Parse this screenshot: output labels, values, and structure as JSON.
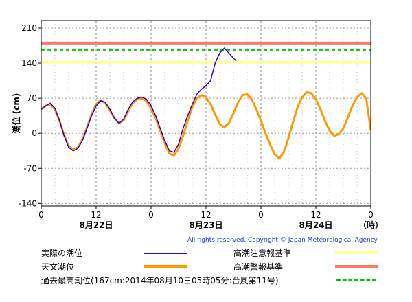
{
  "chart_data": {
    "type": "line",
    "ylabel": "潮位 (cm)",
    "ylim": [
      -145,
      225
    ],
    "yticks": [
      210,
      140,
      70,
      0,
      -70,
      -140
    ],
    "xlim": [
      0,
      72
    ],
    "xticks": [
      {
        "x": 0,
        "label": "0"
      },
      {
        "x": 12,
        "label": "12"
      },
      {
        "x": 24,
        "label": "0"
      },
      {
        "x": 36,
        "label": "12"
      },
      {
        "x": 48,
        "label": "0"
      },
      {
        "x": 60,
        "label": "12"
      },
      {
        "x": 72,
        "label": "0"
      }
    ],
    "date_labels": [
      {
        "x": 12,
        "label": "8月22日"
      },
      {
        "x": 36,
        "label": "8月23日"
      },
      {
        "x": 60,
        "label": "8月24日"
      },
      {
        "x": 72,
        "label": "（時）"
      }
    ],
    "grid": true,
    "series": [
      {
        "name": "実際の潮位",
        "color": "#3300cc",
        "x": [
          0,
          1,
          2,
          3,
          4,
          5,
          6,
          7,
          8,
          9,
          10,
          11,
          12,
          13,
          14,
          15,
          16,
          17,
          18,
          19,
          20,
          21,
          22,
          23,
          24,
          25,
          26,
          27,
          28,
          29,
          30,
          31,
          32,
          33,
          34,
          35,
          36,
          37,
          38,
          39,
          40,
          41,
          42,
          42.5
        ],
        "y": [
          48,
          55,
          60,
          50,
          25,
          -5,
          -28,
          -35,
          -30,
          -15,
          10,
          35,
          55,
          65,
          62,
          48,
          30,
          20,
          28,
          48,
          63,
          70,
          72,
          68,
          55,
          35,
          10,
          -15,
          -35,
          -38,
          -22,
          10,
          35,
          58,
          78,
          88,
          95,
          105,
          140,
          160,
          170,
          160,
          150,
          145
        ]
      },
      {
        "name": "天文潮位",
        "color": "#ff9900",
        "x": [
          0,
          1,
          2,
          3,
          4,
          5,
          6,
          7,
          8,
          9,
          10,
          11,
          12,
          13,
          14,
          15,
          16,
          17,
          18,
          19,
          20,
          21,
          22,
          23,
          24,
          25,
          26,
          27,
          28,
          29,
          30,
          31,
          32,
          33,
          34,
          35,
          36,
          37,
          38,
          39,
          40,
          41,
          42,
          43,
          44,
          45,
          46,
          47,
          48,
          49,
          50,
          51,
          52,
          53,
          54,
          55,
          56,
          57,
          58,
          59,
          60,
          61,
          62,
          63,
          64,
          65,
          66,
          67,
          68,
          69,
          70,
          71,
          72
        ],
        "y": [
          48,
          55,
          58,
          48,
          25,
          -3,
          -25,
          -33,
          -28,
          -12,
          12,
          38,
          58,
          66,
          60,
          46,
          30,
          20,
          26,
          44,
          60,
          68,
          70,
          64,
          50,
          30,
          5,
          -20,
          -40,
          -45,
          -30,
          -5,
          25,
          52,
          70,
          76,
          72,
          58,
          38,
          18,
          12,
          20,
          40,
          62,
          76,
          78,
          68,
          48,
          25,
          0,
          -22,
          -42,
          -50,
          -38,
          -10,
          22,
          52,
          72,
          82,
          80,
          68,
          48,
          25,
          5,
          -5,
          -2,
          10,
          32,
          55,
          72,
          80,
          70,
          6
        ]
      }
    ],
    "thresholds": [
      {
        "name": "高潮注意報基準",
        "value": 142,
        "color": "#ffff99"
      },
      {
        "name": "高潮警報基準",
        "value": 180,
        "color": "#ff7766"
      },
      {
        "name": "過去最高潮位(167cm:2014年08月10日05時05分:台風第11号)",
        "value": 167,
        "color": "#00cc00",
        "dashed": true
      }
    ]
  },
  "copyright": "All rights reserved. Copyright © Japan Meteorological Agency",
  "legend": {
    "actual": "実際の潮位",
    "astronomical": "天文潮位",
    "caution": "高潮注意報基準",
    "warning": "高潮警報基準",
    "record": "過去最高潮位(167cm:2014年08月10日05時05分:台風第11号)"
  },
  "colors": {
    "actual": "#3300cc",
    "astronomical": "#ff9900",
    "caution": "#ffff99",
    "warning": "#ff7766",
    "record": "#00cc00"
  }
}
